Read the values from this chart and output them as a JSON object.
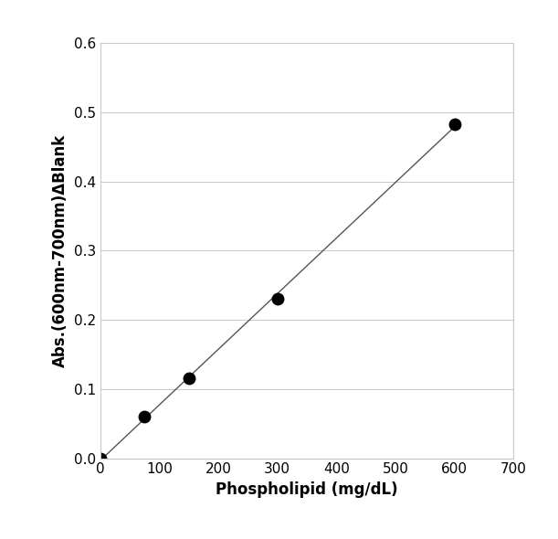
{
  "x_data": [
    0,
    75,
    150,
    300,
    600
  ],
  "y_data": [
    0.0,
    0.06,
    0.115,
    0.23,
    0.483
  ],
  "xlabel": "Phospholipid (mg/dL)",
  "ylabel": "Abs.(600nm-700nm)ΔBlank",
  "xlim": [
    0,
    700
  ],
  "ylim": [
    0.0,
    0.6
  ],
  "xticks": [
    0,
    100,
    200,
    300,
    400,
    500,
    600,
    700
  ],
  "yticks": [
    0.0,
    0.1,
    0.2,
    0.3,
    0.4,
    0.5,
    0.6
  ],
  "marker_color": "#000000",
  "marker_size": 9,
  "line_color": "#555555",
  "line_width": 1.0,
  "grid_color": "#c8c8c8",
  "grid_linewidth": 0.7,
  "background_color": "#ffffff",
  "tick_label_fontsize": 11,
  "axis_label_fontsize": 12,
  "line_x_start": 0,
  "line_x_end": 600
}
